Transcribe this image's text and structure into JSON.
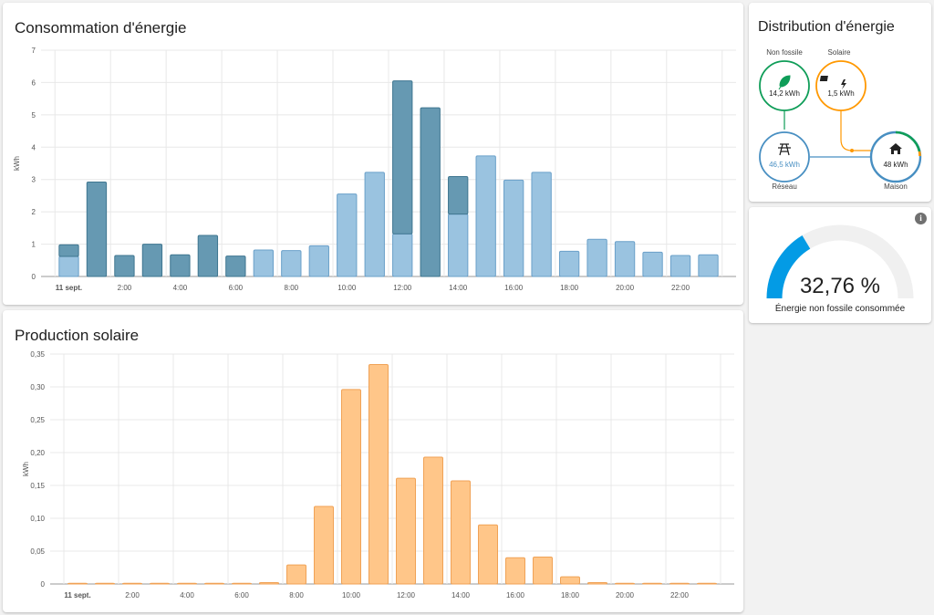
{
  "energy_consumption": {
    "title": "Consommation d'énergie",
    "chart_data": {
      "type": "bar",
      "ylabel": "kWh",
      "ylim": [
        0,
        7
      ],
      "yticks": [
        "0",
        "1",
        "2",
        "3",
        "4",
        "5",
        "6",
        "7"
      ],
      "xticks": [
        "11 sept.",
        "2:00",
        "4:00",
        "6:00",
        "8:00",
        "10:00",
        "12:00",
        "14:00",
        "16:00",
        "18:00",
        "20:00",
        "22:00"
      ],
      "stacked": true,
      "hours": [
        0,
        1,
        2,
        3,
        4,
        5,
        6,
        7,
        8,
        9,
        10,
        11,
        12,
        13,
        14,
        15,
        16,
        17,
        18,
        19,
        20,
        21,
        22,
        23
      ],
      "series": [
        {
          "name": "Solaire",
          "color": "#9ac3e0",
          "values": [
            0.62,
            0,
            0,
            0,
            0,
            0,
            0,
            0.82,
            0.8,
            0.95,
            2.55,
            3.22,
            1.32,
            0,
            1.93,
            3.73,
            2.98,
            3.22,
            0.78,
            1.15,
            1.08,
            0.75,
            0.65,
            0.67
          ]
        },
        {
          "name": "Non fossile",
          "color": "#6699b2",
          "values": [
            0.36,
            2.92,
            0.65,
            1.0,
            0.67,
            1.27,
            0.63,
            0,
            0,
            0,
            0,
            0,
            4.73,
            5.22,
            1.16,
            0,
            0,
            0,
            0,
            0,
            0,
            0,
            0,
            0
          ]
        }
      ]
    }
  },
  "solar_production": {
    "title": "Production solaire",
    "chart_data": {
      "type": "bar",
      "ylabel": "kWh",
      "ylim": [
        0,
        0.35
      ],
      "yticks": [
        "0",
        "0,05",
        "0,10",
        "0,15",
        "0,20",
        "0,25",
        "0,30",
        "0,35"
      ],
      "xticks": [
        "11 sept.",
        "2:00",
        "4:00",
        "6:00",
        "8:00",
        "10:00",
        "12:00",
        "14:00",
        "16:00",
        "18:00",
        "20:00",
        "22:00"
      ],
      "hours": [
        0,
        1,
        2,
        3,
        4,
        5,
        6,
        7,
        8,
        9,
        10,
        11,
        12,
        13,
        14,
        15,
        16,
        17,
        18,
        19,
        20,
        21,
        22,
        23
      ],
      "series": [
        {
          "color": "#ffc689",
          "values": [
            0.001,
            0.001,
            0.001,
            0.001,
            0.001,
            0.001,
            0.001,
            0.002,
            0.029,
            0.118,
            0.296,
            0.334,
            0.161,
            0.193,
            0.157,
            0.09,
            0.04,
            0.041,
            0.011,
            0.002,
            0.001,
            0.001,
            0.001,
            0.001
          ]
        }
      ]
    }
  },
  "distribution": {
    "title": "Distribution d'énergie",
    "nodes": {
      "nonfossil": {
        "label": "Non fossile",
        "value": "14,2 kWh",
        "icon": "leaf-icon",
        "color": "#0f9d58"
      },
      "solar": {
        "label": "Solaire",
        "value": "1,5 kWh",
        "icon": "solar-power-icon",
        "color": "#ff9800"
      },
      "grid": {
        "label": "Réseau",
        "value": "46,5 kWh",
        "icon": "transmission-tower-icon",
        "color": "#488fc2"
      },
      "home": {
        "label": "Maison",
        "value": "48 kWh",
        "icon": "home-icon",
        "color": "#212121"
      }
    }
  },
  "gauge": {
    "value": "32,76 %",
    "fraction": 0.3276,
    "label": "Énergie non fossile consommée",
    "color": "#039be5"
  }
}
